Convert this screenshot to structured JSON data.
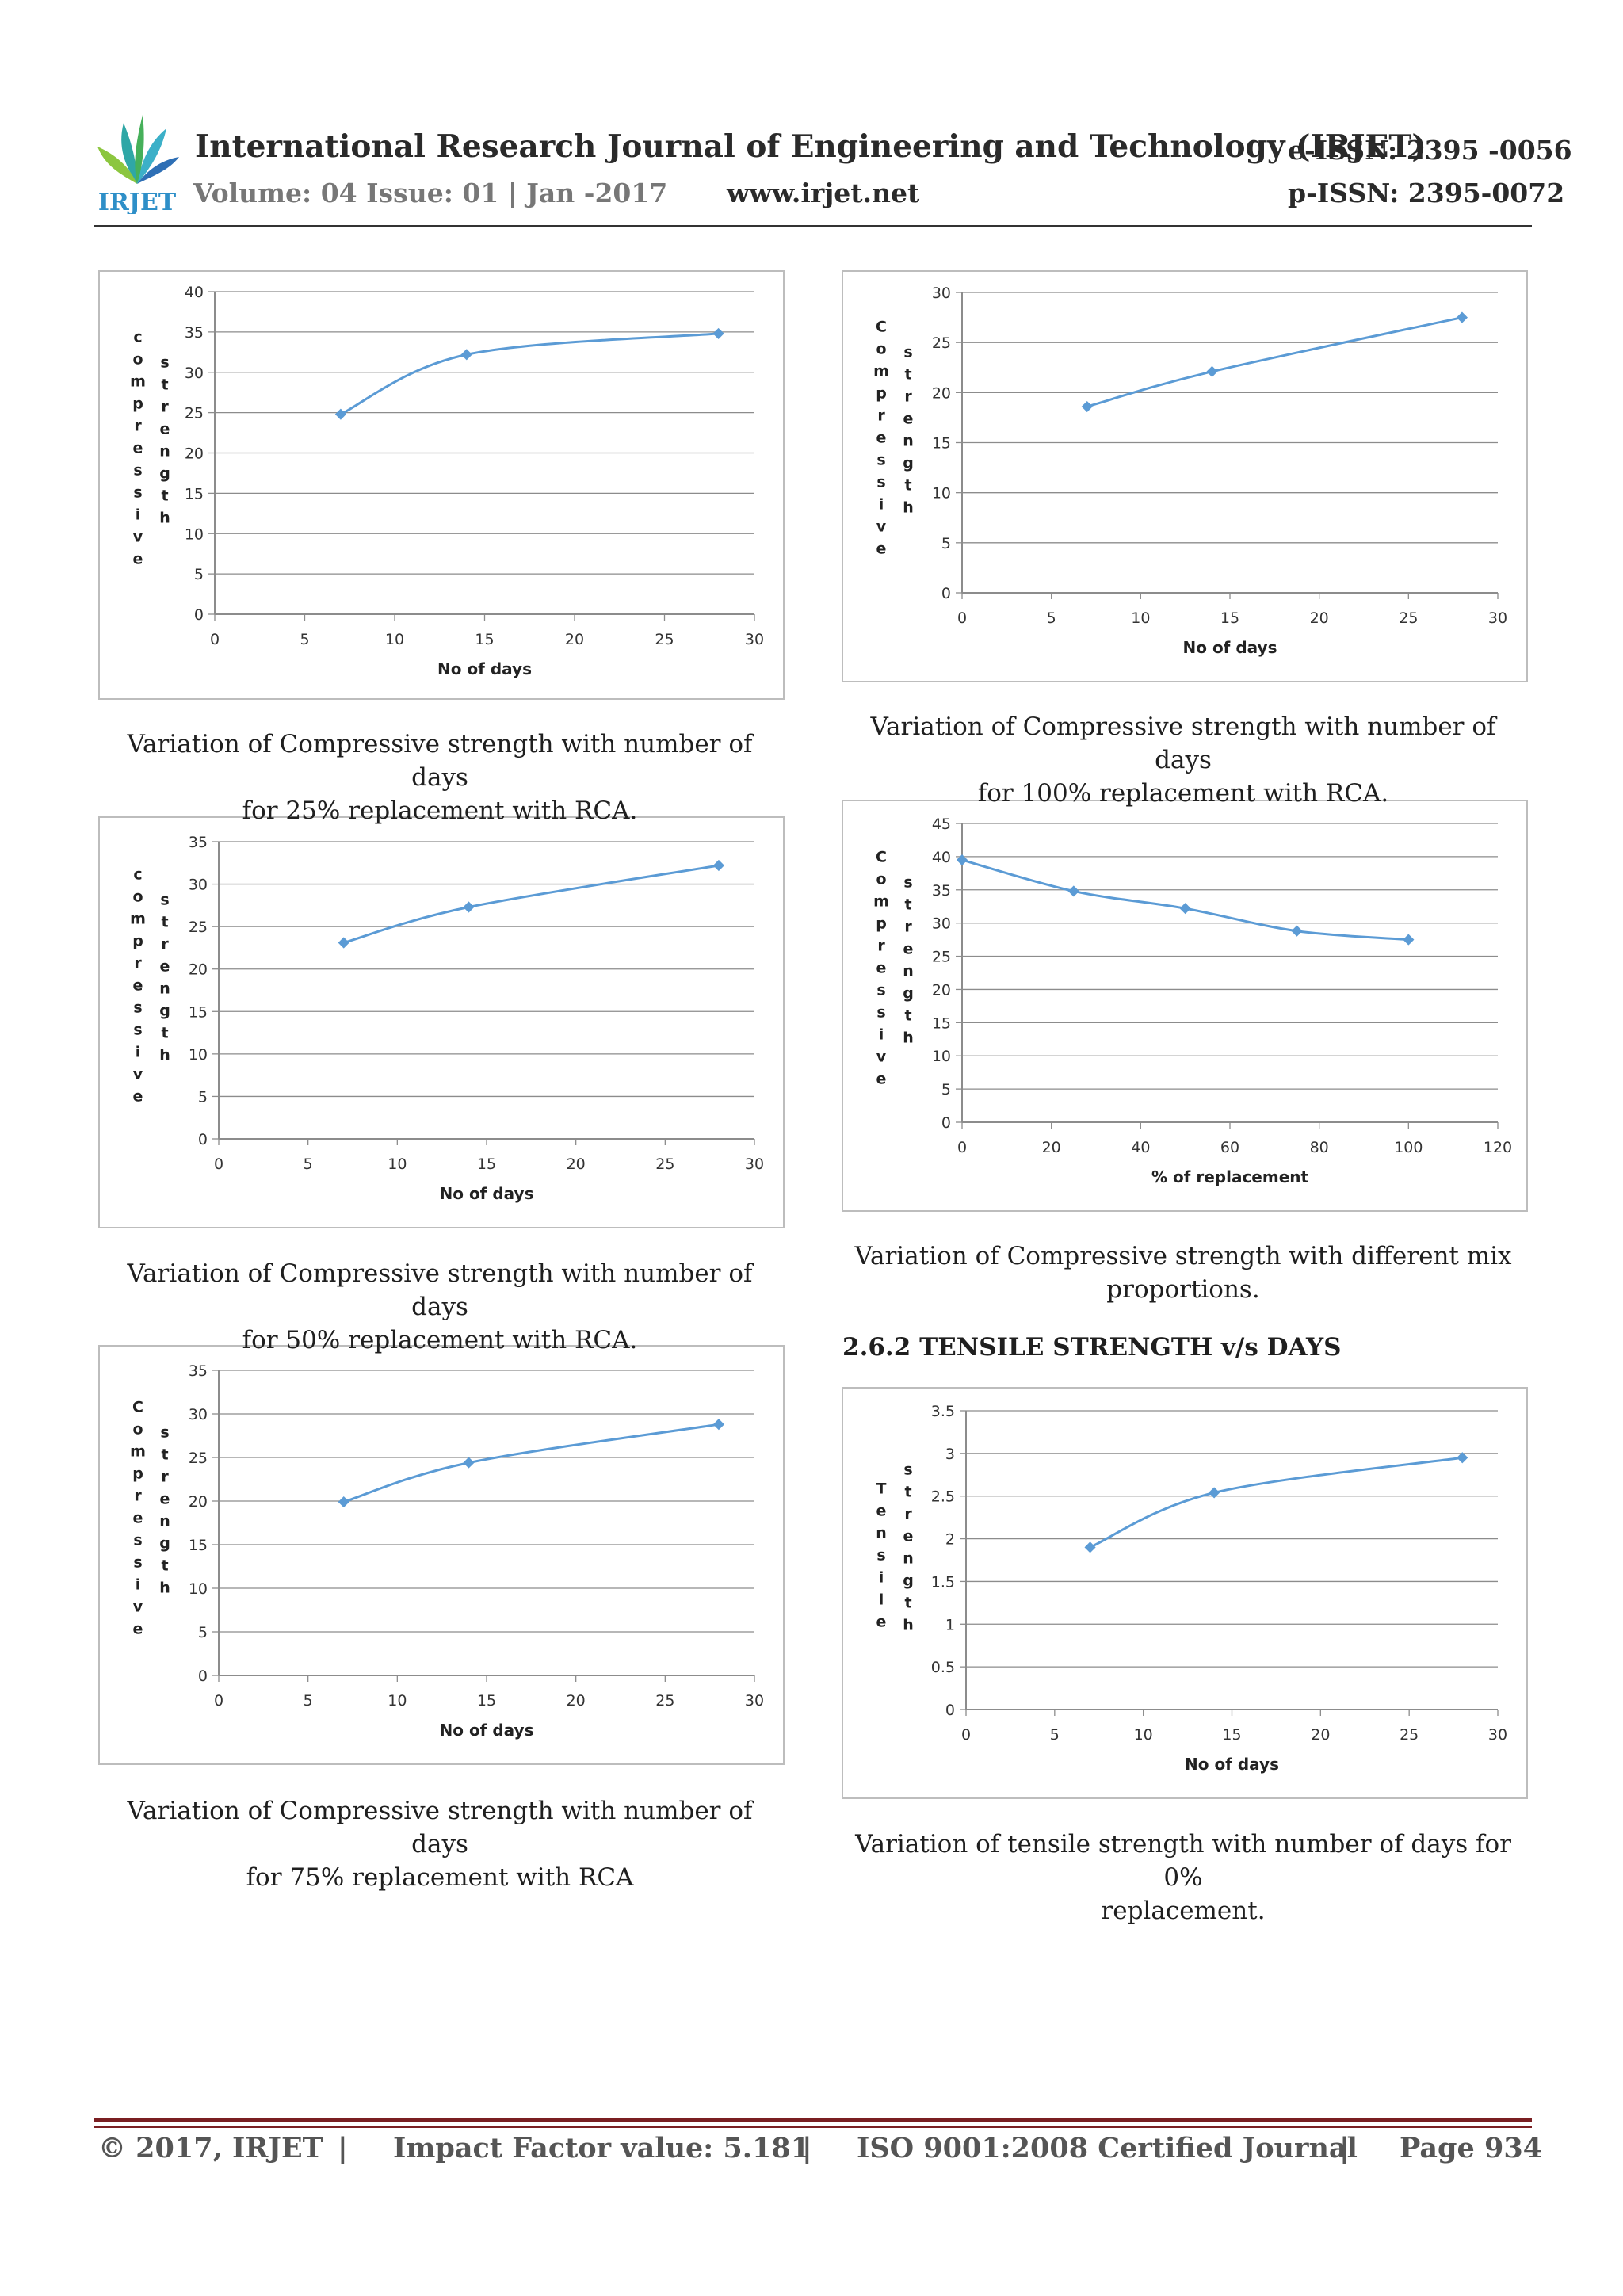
{
  "header": {
    "journal_title": "International Research Journal of Engineering and Technology (IRJET)",
    "e_issn": "e-ISSN: 2395 -0056",
    "volume": "Volume: 04 Issue: 01 | Jan -2017",
    "website": "www.irjet.net",
    "p_issn": "p-ISSN: 2395-0072",
    "logo_text": "IRJET"
  },
  "section_heading": "2.6.2 TENSILE STRENGTH v/s DAYS",
  "captions": {
    "c25_line1": "Variation of Compressive strength with number of days",
    "c25_line2": "for 25% replacement with RCA.",
    "c100_line1": "Variation of Compressive strength with number of days",
    "c100_line2": "for 100% replacement with RCA.",
    "c50_line1": "Variation of Compressive strength with number of days",
    "c50_line2": "for 50% replacement with RCA.",
    "cmix_line1": "Variation of Compressive strength with different mix",
    "cmix_line2": "proportions.",
    "c75_line1": "Variation of Compressive strength with number of days",
    "c75_line2": "for 75% replacement with RCA",
    "ct_line1": "Variation of tensile strength with number of days for 0%",
    "ct_line2": "replacement."
  },
  "footer": {
    "copyright": "© 2017, IRJET",
    "sep": "|",
    "impact": "Impact Factor value: 5.181",
    "iso": "ISO 9001:2008 Certified Journal",
    "page": "Page 934"
  },
  "colors": {
    "series": "#5b9bd5",
    "grid": "#8c8c8c",
    "footer_rule": "#7a1f22"
  },
  "chart_data": [
    {
      "id": "c25",
      "type": "line",
      "x": [
        7,
        14,
        28
      ],
      "y": [
        24.8,
        32.2,
        34.8
      ],
      "xlim": [
        0,
        30
      ],
      "xticks": [
        0,
        5,
        10,
        15,
        20,
        25,
        30
      ],
      "ylim": [
        0,
        40
      ],
      "yticks": [
        0,
        5,
        10,
        15,
        20,
        25,
        30,
        35,
        40
      ],
      "xlabel": "No  of days",
      "ylabel_word1": "compressive",
      "ylabel_word2": "strength"
    },
    {
      "id": "c100",
      "type": "line",
      "x": [
        7,
        14,
        28
      ],
      "y": [
        18.6,
        22.1,
        27.5
      ],
      "xlim": [
        0,
        30
      ],
      "xticks": [
        0,
        5,
        10,
        15,
        20,
        25,
        30
      ],
      "ylim": [
        0,
        30
      ],
      "yticks": [
        0,
        5,
        10,
        15,
        20,
        25,
        30
      ],
      "xlabel": "No of days",
      "ylabel_word1": "Compressive",
      "ylabel_word2": "strength"
    },
    {
      "id": "c50",
      "type": "line",
      "x": [
        7,
        14,
        28
      ],
      "y": [
        23.1,
        27.3,
        32.2
      ],
      "xlim": [
        0,
        30
      ],
      "xticks": [
        0,
        5,
        10,
        15,
        20,
        25,
        30
      ],
      "ylim": [
        0,
        35
      ],
      "yticks": [
        0,
        5,
        10,
        15,
        20,
        25,
        30,
        35
      ],
      "xlabel": "No of days",
      "ylabel_word1": "compressive",
      "ylabel_word2": "strength"
    },
    {
      "id": "cmix",
      "type": "line",
      "x": [
        0,
        25,
        50,
        75,
        100
      ],
      "y": [
        39.5,
        34.8,
        32.2,
        28.8,
        27.5
      ],
      "xlim": [
        0,
        120
      ],
      "xticks": [
        0,
        20,
        40,
        60,
        80,
        100,
        120
      ],
      "ylim": [
        0,
        45
      ],
      "yticks": [
        0,
        5,
        10,
        15,
        20,
        25,
        30,
        35,
        40,
        45
      ],
      "xlabel": "% of replacement",
      "ylabel_word1": "Compressive",
      "ylabel_word2": "strength"
    },
    {
      "id": "c75",
      "type": "line",
      "x": [
        7,
        14,
        28
      ],
      "y": [
        19.9,
        24.4,
        28.8
      ],
      "xlim": [
        0,
        30
      ],
      "xticks": [
        0,
        5,
        10,
        15,
        20,
        25,
        30
      ],
      "ylim": [
        0,
        35
      ],
      "yticks": [
        0,
        5,
        10,
        15,
        20,
        25,
        30,
        35
      ],
      "xlabel": "No of days",
      "ylabel_word1": "Compressive",
      "ylabel_word2": "strength"
    },
    {
      "id": "ct",
      "type": "line",
      "x": [
        7,
        14,
        28
      ],
      "y": [
        1.9,
        2.54,
        2.95
      ],
      "xlim": [
        0,
        30
      ],
      "xticks": [
        0,
        5,
        10,
        15,
        20,
        25,
        30
      ],
      "ylim": [
        0,
        3.5
      ],
      "yticks": [
        0,
        0.5,
        1,
        1.5,
        2,
        2.5,
        3,
        3.5
      ],
      "xlabel": "No of days",
      "ylabel_word1": "Tensile",
      "ylabel_word2": "strength"
    }
  ]
}
